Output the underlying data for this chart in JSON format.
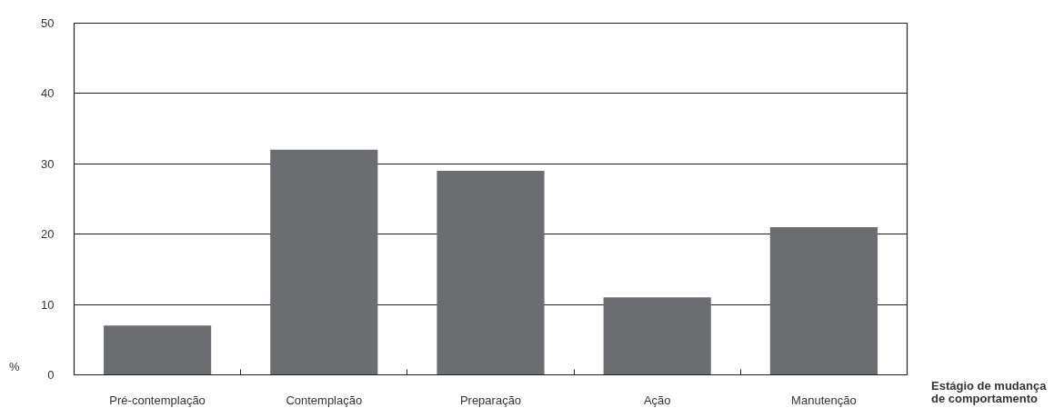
{
  "chart_data": {
    "type": "bar",
    "xlabel": "Estágio de mudança de comportamento",
    "ylabel": "%",
    "categories": [
      "Pré-contemplação",
      "Contemplação",
      "Preparação",
      "Ação",
      "Manutenção"
    ],
    "values": [
      7,
      32,
      29,
      11,
      21
    ],
    "color": "#6c6d71",
    "ylim": [
      0,
      50
    ],
    "yticks": [
      0,
      10,
      20,
      30,
      40,
      50
    ],
    "grid": "y"
  }
}
